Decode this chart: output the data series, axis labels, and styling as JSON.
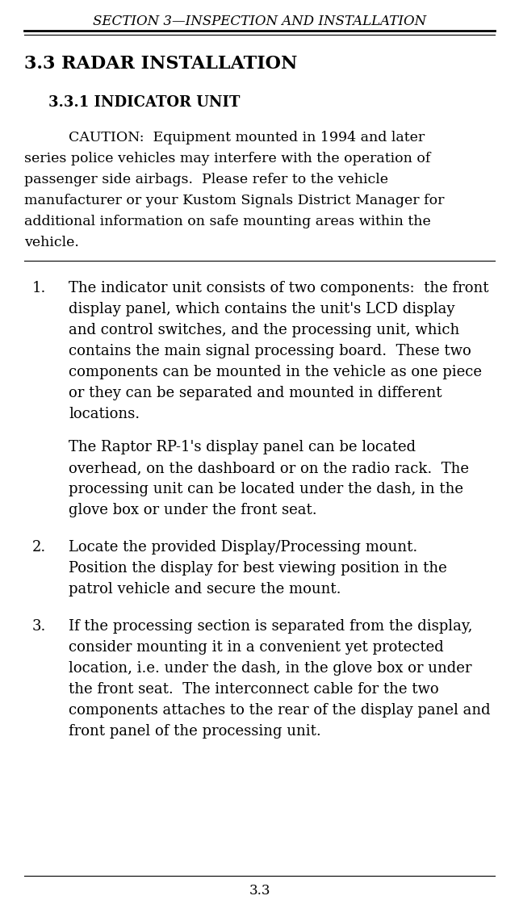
{
  "bg_color": "#ffffff",
  "text_color": "#000000",
  "header_text": "SECTION 3—INSPECTION AND INSTALLATION",
  "footer_text": "3.3",
  "section_title": "3.3 RADAR INSTALLATION",
  "subsection_title": "3.3.1 INDICATOR UNIT",
  "caution_text": "CAUTION:  Equipment mounted in 1994 and later series police vehicles may interfere with the operation of passenger side airbags.  Please refer to the vehicle manufacturer or your Kustom Signals District Manager for additional information on safe mounting areas within the vehicle.",
  "caution_lines": [
    "CAUTION:  Equipment mounted in 1994 and later",
    "series police vehicles may interfere with the operation of",
    "passenger side airbags.  Please refer to the vehicle",
    "manufacturer or your Kustom Signals District Manager for",
    "additional information on safe mounting areas within the",
    "vehicle."
  ],
  "item1_para1_lines": [
    "The indicator unit consists of two components:  the front",
    "display panel, which contains the unit's LCD display",
    "and control switches, and the processing unit, which",
    "contains the main signal processing board.  These two",
    "components can be mounted in the vehicle as one piece",
    "or they can be separated and mounted in different",
    "locations."
  ],
  "item1_para2_lines": [
    "The Raptor RP-1's display panel can be located",
    "overhead, on the dashboard or on the radio rack.  The",
    "processing unit can be located under the dash, in the",
    "glove box or under the front seat."
  ],
  "item2_lines": [
    "Locate the provided Display/Processing mount.",
    "Position the display for best viewing position in the",
    "patrol vehicle and secure the mount."
  ],
  "item3_lines": [
    "If the processing section is separated from the display,",
    "consider mounting it in a convenient yet protected",
    "location, i.e. under the dash, in the glove box or under",
    "the front seat.  The interconnect cable for the two",
    "components attaches to the rear of the display panel and",
    "front panel of the processing unit."
  ]
}
